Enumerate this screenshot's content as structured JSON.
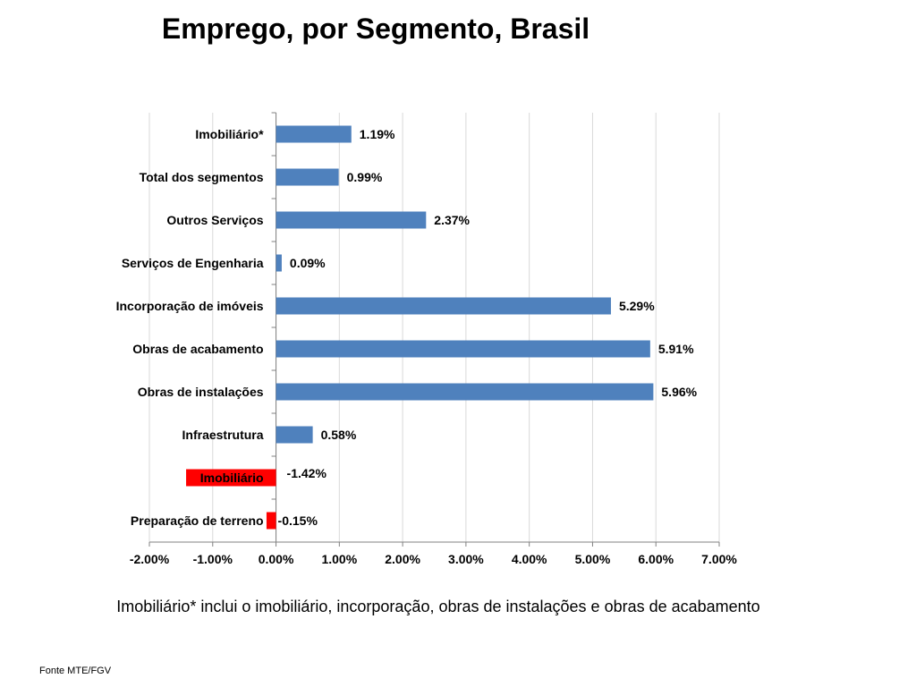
{
  "chart_data": {
    "type": "bar",
    "orientation": "horizontal",
    "title": "Emprego, por Segmento, Brasil",
    "categories": [
      "Imobiliário*",
      "Total dos segmentos",
      "Outros Serviços",
      "Serviços de Engenharia",
      "Incorporação de imóveis",
      "Obras de acabamento",
      "Obras de instalações",
      "Infraestrutura",
      "Imobiliário",
      "Preparação de terreno"
    ],
    "values": [
      1.19,
      0.99,
      2.37,
      0.09,
      5.29,
      5.91,
      5.96,
      0.58,
      -1.42,
      -0.15
    ],
    "value_labels": [
      "1.19%",
      "0.99%",
      "2.37%",
      "0.09%",
      "5.29%",
      "5.91%",
      "5.96%",
      "0.58%",
      "-1.42%",
      "-0.15%"
    ],
    "xlim": [
      -2,
      7
    ],
    "xticks": [
      -2,
      -1,
      0,
      1,
      2,
      3,
      4,
      5,
      6,
      7
    ],
    "xtick_labels": [
      "-2.00%",
      "-1.00%",
      "0.00%",
      "1.00%",
      "2.00%",
      "3.00%",
      "4.00%",
      "5.00%",
      "6.00%",
      "7.00%"
    ],
    "grid": "vertical",
    "legend": "none",
    "colors": {
      "positive": "#4F81BD",
      "negative": "#FF0000"
    }
  },
  "note": "Imobiliário* inclui o imobiliário, incorporação, obras de instalações e obras de acabamento",
  "source": "Fonte MTE/FGV"
}
